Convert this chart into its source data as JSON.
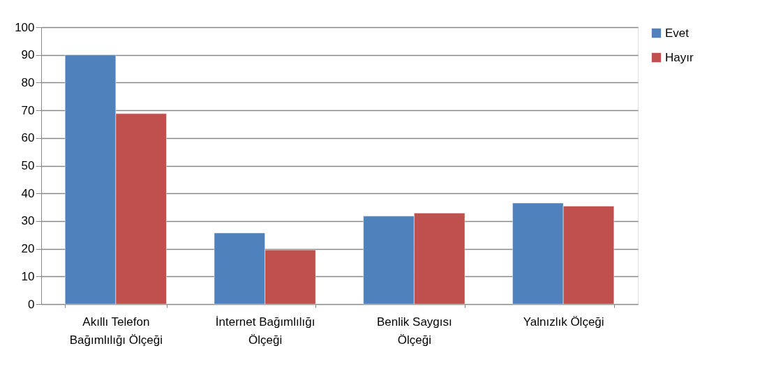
{
  "chart_data": {
    "type": "bar",
    "categories": [
      "Akıllı Telefon Bağımlılığı Ölçeği",
      "İnternet Bağımlılığı Ölçeği",
      "Benlik Saygısı Ölçeği",
      "Yalnızlık Ölçeği"
    ],
    "series": [
      {
        "name": "Evet",
        "color": "#4f81bd",
        "values": [
          90,
          25.7,
          31.8,
          36.5
        ]
      },
      {
        "name": "Hayır",
        "color": "#c0504d",
        "values": [
          68.8,
          19.6,
          32.9,
          35.4
        ]
      }
    ],
    "ylim": [
      0,
      100
    ],
    "yticks": [
      0,
      10,
      20,
      30,
      40,
      50,
      60,
      70,
      80,
      90,
      100
    ],
    "grid": "y",
    "legend": "right"
  }
}
